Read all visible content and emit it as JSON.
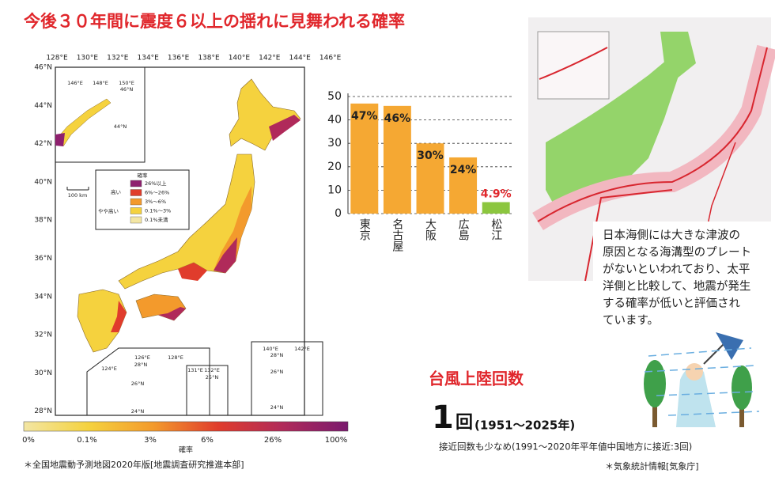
{
  "title": "今後３０年間に震度６以上の揺れに見舞われる確率",
  "map": {
    "lon_labels": [
      "128°E",
      "130°E",
      "132°E",
      "134°E",
      "136°E",
      "138°E",
      "140°E",
      "142°E",
      "144°E",
      "146°E"
    ],
    "lat_labels": [
      "46°N",
      "44°N",
      "42°N",
      "40°N",
      "38°N",
      "36°N",
      "34°N",
      "32°N",
      "30°N",
      "28°N"
    ],
    "legend": {
      "title": "確率",
      "levels": [
        "26%以上",
        "6%～26%",
        "3%～6%",
        "0.1%～3%",
        "0.1%未満"
      ],
      "colors": [
        "#8e1f6e",
        "#e03c2c",
        "#f39a2c",
        "#f5d23e",
        "#f3e6a4"
      ],
      "high": "高い",
      "mid_high": "やや高い"
    },
    "scale": "100 km",
    "colorbar": {
      "labels": [
        "0%",
        "0.1%",
        "3%",
        "6%",
        "26%",
        "100%"
      ],
      "title": "確率"
    },
    "insets": {
      "north": [
        "146°E",
        "148°E",
        "150°E",
        "46°N",
        "44°N"
      ],
      "south": [
        "126°E",
        "128°E",
        "28°N",
        "26°N",
        "124°E",
        "24°N"
      ],
      "daito": [
        "131°E",
        "132°E",
        "25°N"
      ],
      "ogasawara": [
        "140°E",
        "142°E",
        "28°N",
        "26°N",
        "24°N"
      ]
    },
    "source": "＊全国地震動予測地図2020年版[地震調査研究推進本部]"
  },
  "chart_data": {
    "type": "bar",
    "categories": [
      "東京",
      "名古屋",
      "大阪",
      "広島",
      "松江"
    ],
    "values": [
      47,
      46,
      30,
      24,
      4.9
    ],
    "value_labels": [
      "47%",
      "46%",
      "30%",
      "24%",
      "4.9%"
    ],
    "colors": [
      "#f5a833",
      "#f5a833",
      "#f5a833",
      "#f5a833",
      "#8cc63f"
    ],
    "value_label_colors": [
      "#222222",
      "#222222",
      "#222222",
      "#222222",
      "#e0262b"
    ],
    "ylim": [
      0,
      50
    ],
    "yticks": [
      0,
      10,
      20,
      30,
      40,
      50
    ],
    "grid": true
  },
  "plates": {
    "text": [
      "日本海側には大きな津波の",
      "原因となる海溝型のプレート",
      "がないといわれており、太平",
      "洋側と比較して、地震が発生",
      "する確率が低いと評価され",
      "ています。"
    ]
  },
  "typhoon": {
    "title": "台風上陸回数",
    "count": "1",
    "unit": "回",
    "period": "(1951～2025年)",
    "note": "接近回数も少なめ(1991～2020年平年値中国地方に接近:3回)",
    "source": "＊気象統計情報[気象庁]"
  }
}
